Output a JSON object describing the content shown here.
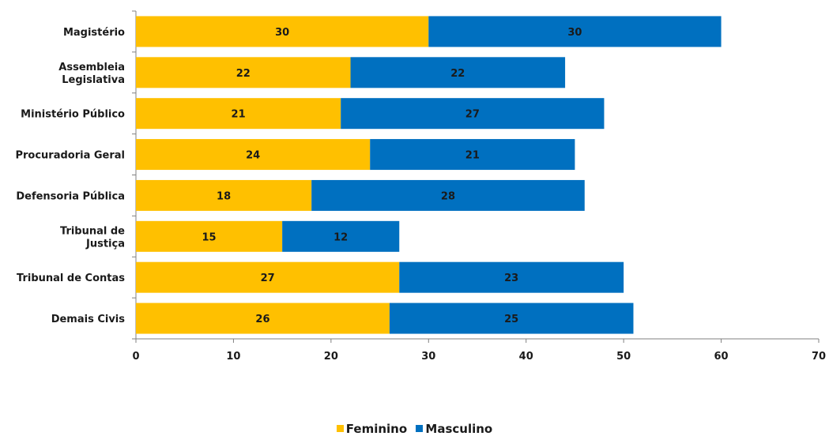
{
  "colors": {
    "feminino": "#FFC000",
    "masculino": "#0070C0"
  },
  "chart_data": {
    "type": "bar",
    "orientation": "horizontal",
    "stacked": true,
    "categories": [
      [
        "Magistério"
      ],
      [
        "Assembleia",
        "Legislativa"
      ],
      [
        "Ministério Público"
      ],
      [
        "Procuradoria Geral"
      ],
      [
        "Defensoria Pública"
      ],
      [
        "Tribunal de",
        "Justiça"
      ],
      [
        "Tribunal de Contas"
      ],
      [
        "Demais Civis"
      ]
    ],
    "series": [
      {
        "name": "Feminino",
        "values": [
          30,
          22,
          21,
          24,
          18,
          15,
          27,
          26
        ]
      },
      {
        "name": "Masculino",
        "values": [
          30,
          22,
          27,
          21,
          28,
          12,
          23,
          25
        ]
      }
    ],
    "xlim": [
      0,
      70
    ],
    "xticks": [
      "0",
      "10",
      "20",
      "30",
      "40",
      "50",
      "60",
      "70"
    ],
    "grid": false,
    "legend_position": "bottom"
  }
}
